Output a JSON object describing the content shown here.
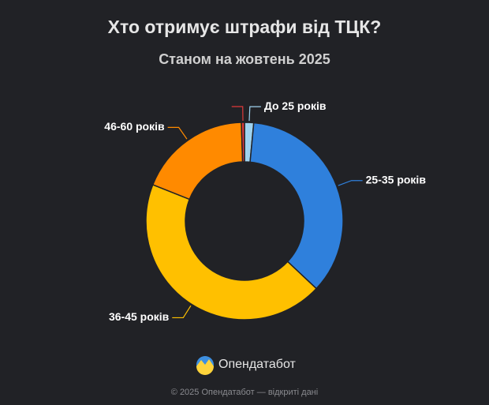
{
  "chart_data": {
    "type": "pie",
    "title": "Хто отримує штрафи від ТЦК?",
    "subtitle": "Станом на жовтень 2025",
    "categories": [
      "До 25 років",
      "25-35 років",
      "36-45 років",
      "46-60 років",
      null
    ],
    "values": [
      1.5,
      35.5,
      44,
      18.5,
      0.5
    ],
    "colors": [
      "#9fd3ef",
      "#2f80dc",
      "#ffc000",
      "#ff8a00",
      "#e03a3a"
    ],
    "hole": 0.6
  },
  "footer": {
    "brand": "Опендатабот",
    "copyright": "© 2025 Опендатабот — відкриті дані"
  }
}
